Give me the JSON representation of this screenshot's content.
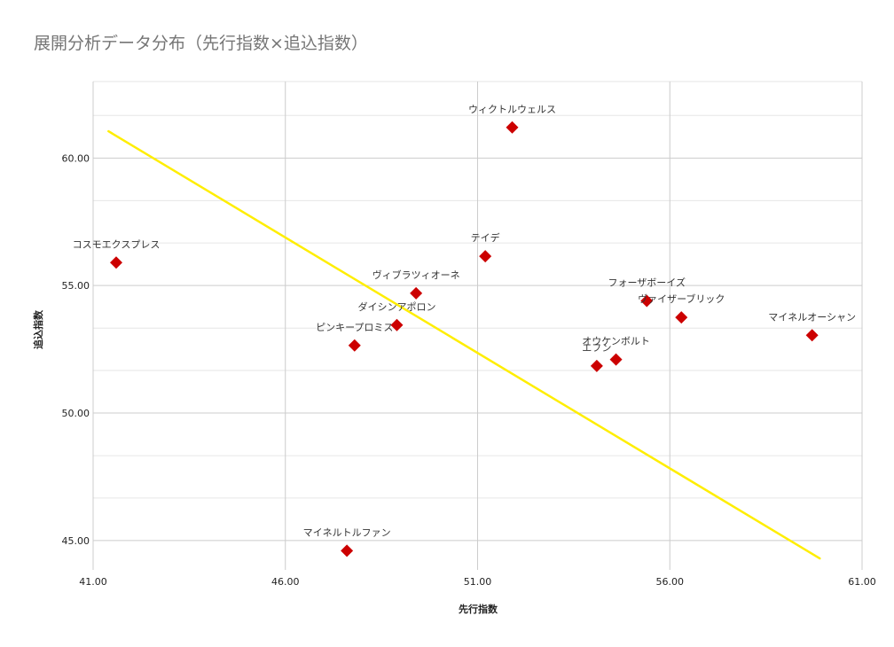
{
  "chart_data": {
    "type": "scatter",
    "title": "展開分析データ分布（先行指数×追込指数）",
    "xlabel": "先行指数",
    "ylabel": "追込指数",
    "xlim": [
      41,
      61
    ],
    "ylim": [
      43.85,
      63.0
    ],
    "x_ticks": [
      41,
      46,
      51,
      56,
      61
    ],
    "x_tick_labels": [
      "41.00",
      "46.00",
      "51.00",
      "56.00",
      "61.00"
    ],
    "y_ticks": [
      45,
      50,
      55,
      60
    ],
    "y_tick_labels": [
      "45.00",
      "50.00",
      "55.00",
      "60.00"
    ],
    "y_minor_ticks": [
      46.67,
      48.33,
      51.67,
      53.33,
      56.67,
      58.33,
      61.67
    ],
    "grid": true,
    "colors": {
      "marker": "#cc0000",
      "trendline": "#ffee00",
      "grid_major": "#cccccc",
      "grid_minor": "#e6e6e6",
      "title": "#757575"
    },
    "points": [
      {
        "label": "ウィクトルウェルス",
        "x": 51.9,
        "y": 61.2
      },
      {
        "label": "コスモエクスプレス",
        "x": 41.6,
        "y": 55.9
      },
      {
        "label": "テイデ",
        "x": 51.2,
        "y": 56.15
      },
      {
        "label": "ヴィブラツィオーネ",
        "x": 49.4,
        "y": 54.7
      },
      {
        "label": "フォーザボーイズ",
        "x": 55.4,
        "y": 54.4
      },
      {
        "label": "ヴァイザーブリック",
        "x": 56.3,
        "y": 53.75
      },
      {
        "label": "マイネルオーシャン",
        "x": 59.7,
        "y": 53.05
      },
      {
        "label": "ダイシンアポロン",
        "x": 48.9,
        "y": 53.45
      },
      {
        "label": "ピンキープロミス",
        "x": 47.8,
        "y": 52.65
      },
      {
        "label": "オウケンボルト",
        "x": 54.6,
        "y": 52.1
      },
      {
        "label": "エフン",
        "x": 54.1,
        "y": 51.85
      },
      {
        "label": "マイネルトルファン",
        "x": 47.6,
        "y": 44.6
      }
    ],
    "trendline": {
      "x": [
        41.4,
        59.9
      ],
      "y": [
        61.05,
        44.3
      ]
    }
  }
}
